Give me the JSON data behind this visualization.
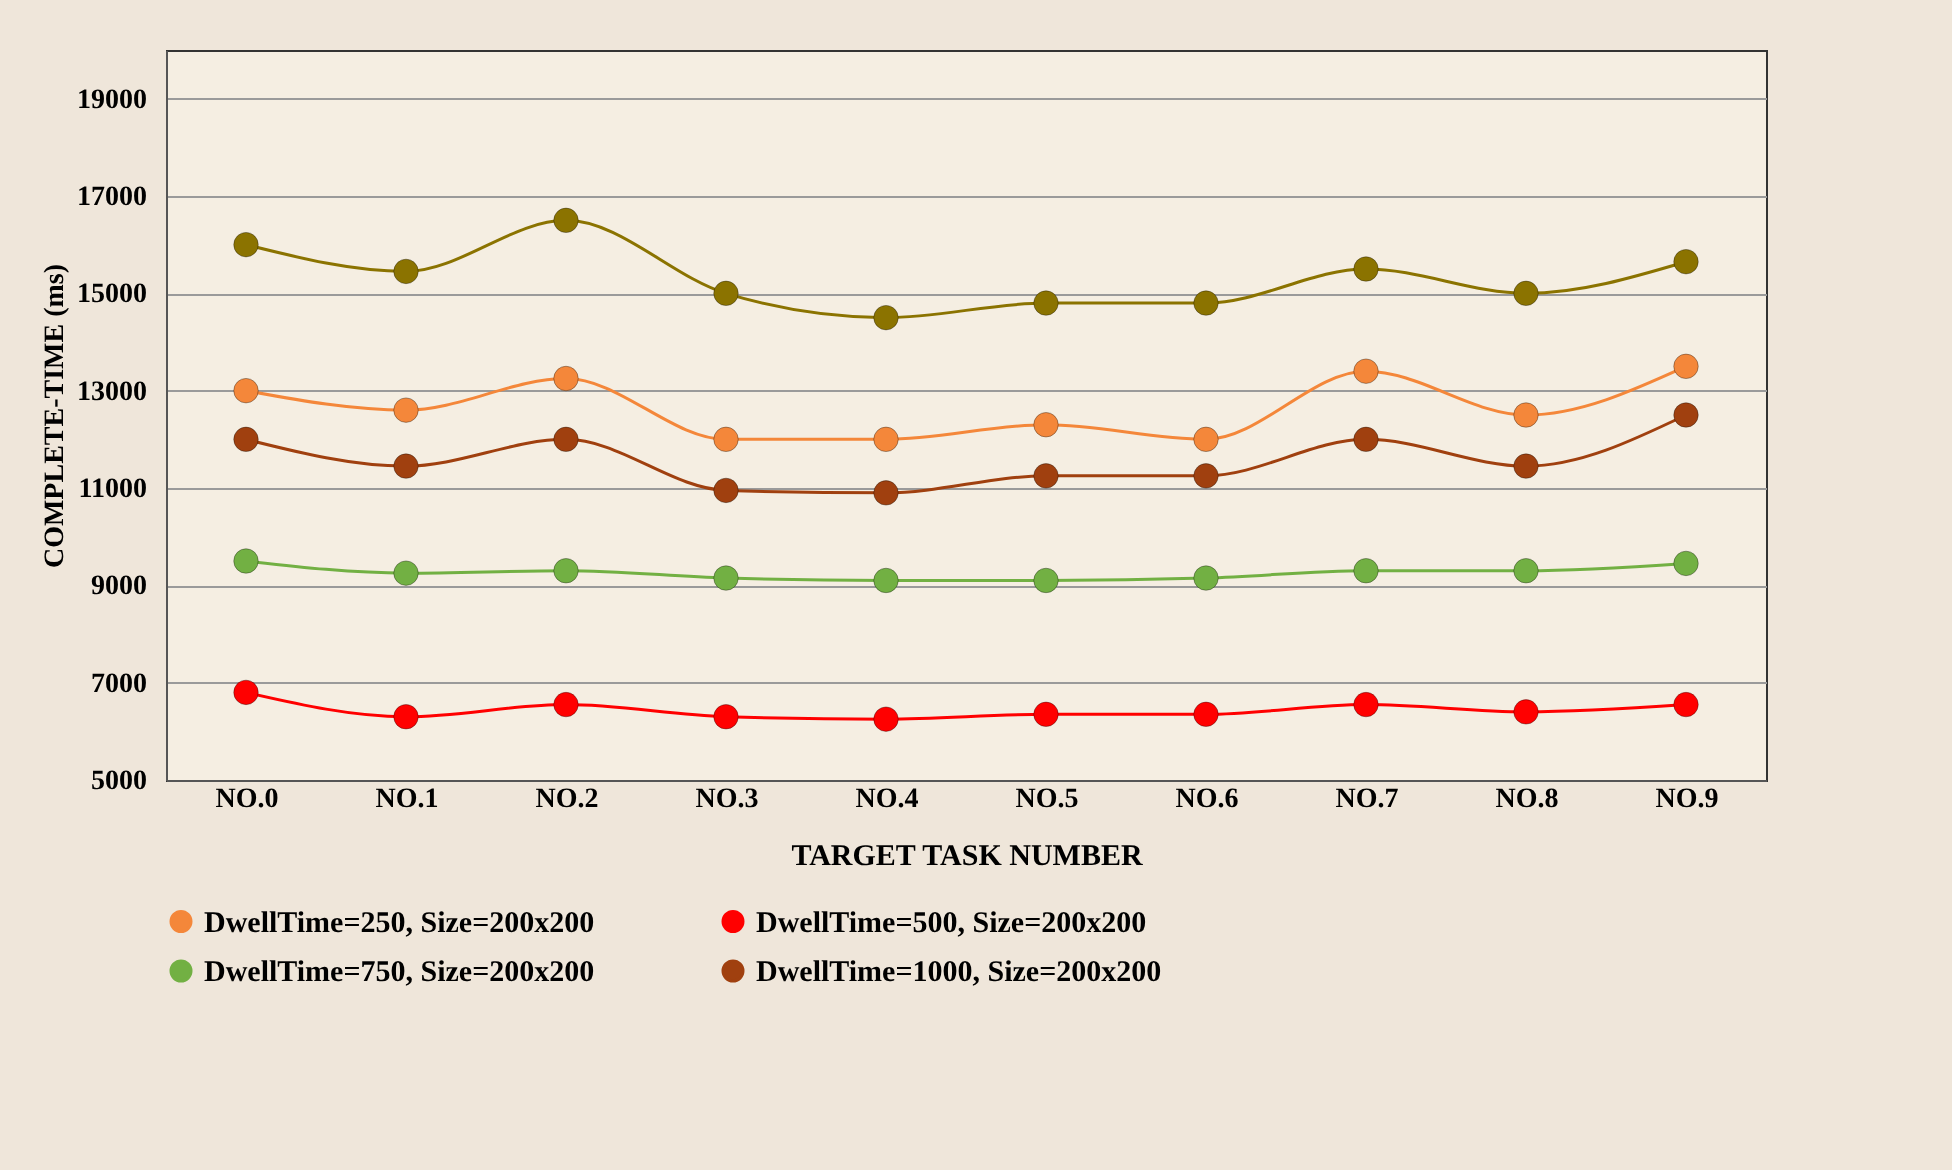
{
  "chart_data": {
    "type": "line",
    "xlabel": "TARGET TASK NUMBER",
    "ylabel": "COMPLETE-TIME (ms)",
    "categories": [
      "NO.0",
      "NO.1",
      "NO.2",
      "NO.3",
      "NO.4",
      "NO.5",
      "NO.6",
      "NO.7",
      "NO.8",
      "NO.9"
    ],
    "series": [
      {
        "color": "#8b7300",
        "values": [
          16000,
          15450,
          16500,
          15000,
          14500,
          14800,
          14800,
          15500,
          15000,
          15650
        ]
      },
      {
        "name": "DwellTime=250, Size=200x200",
        "color": "#f4873a",
        "values": [
          13000,
          12600,
          13250,
          12000,
          12000,
          12300,
          12000,
          13400,
          12500,
          13500
        ]
      },
      {
        "name": "DwellTime=500, Size=200x200",
        "color": "#ff0000",
        "values": [
          6800,
          6300,
          6550,
          6300,
          6250,
          6350,
          6350,
          6550,
          6400,
          6550
        ]
      },
      {
        "name": "DwellTime=750, Size=200x200",
        "color": "#72b043",
        "values": [
          9500,
          9250,
          9300,
          9150,
          9100,
          9100,
          9150,
          9300,
          9300,
          9450
        ]
      },
      {
        "name": "DwellTime=1000, Size=200x200",
        "color": "#a0400f",
        "values": [
          12000,
          11450,
          12000,
          10950,
          10900,
          11250,
          11250,
          12000,
          11450,
          12500
        ]
      }
    ],
    "ylim": [
      5000,
      20000
    ],
    "yticks": [
      5000,
      7000,
      9000,
      11000,
      13000,
      15000,
      17000,
      19000
    ],
    "grid": "y",
    "legend": "bottom",
    "marker": "circle",
    "line_style": "solid"
  }
}
